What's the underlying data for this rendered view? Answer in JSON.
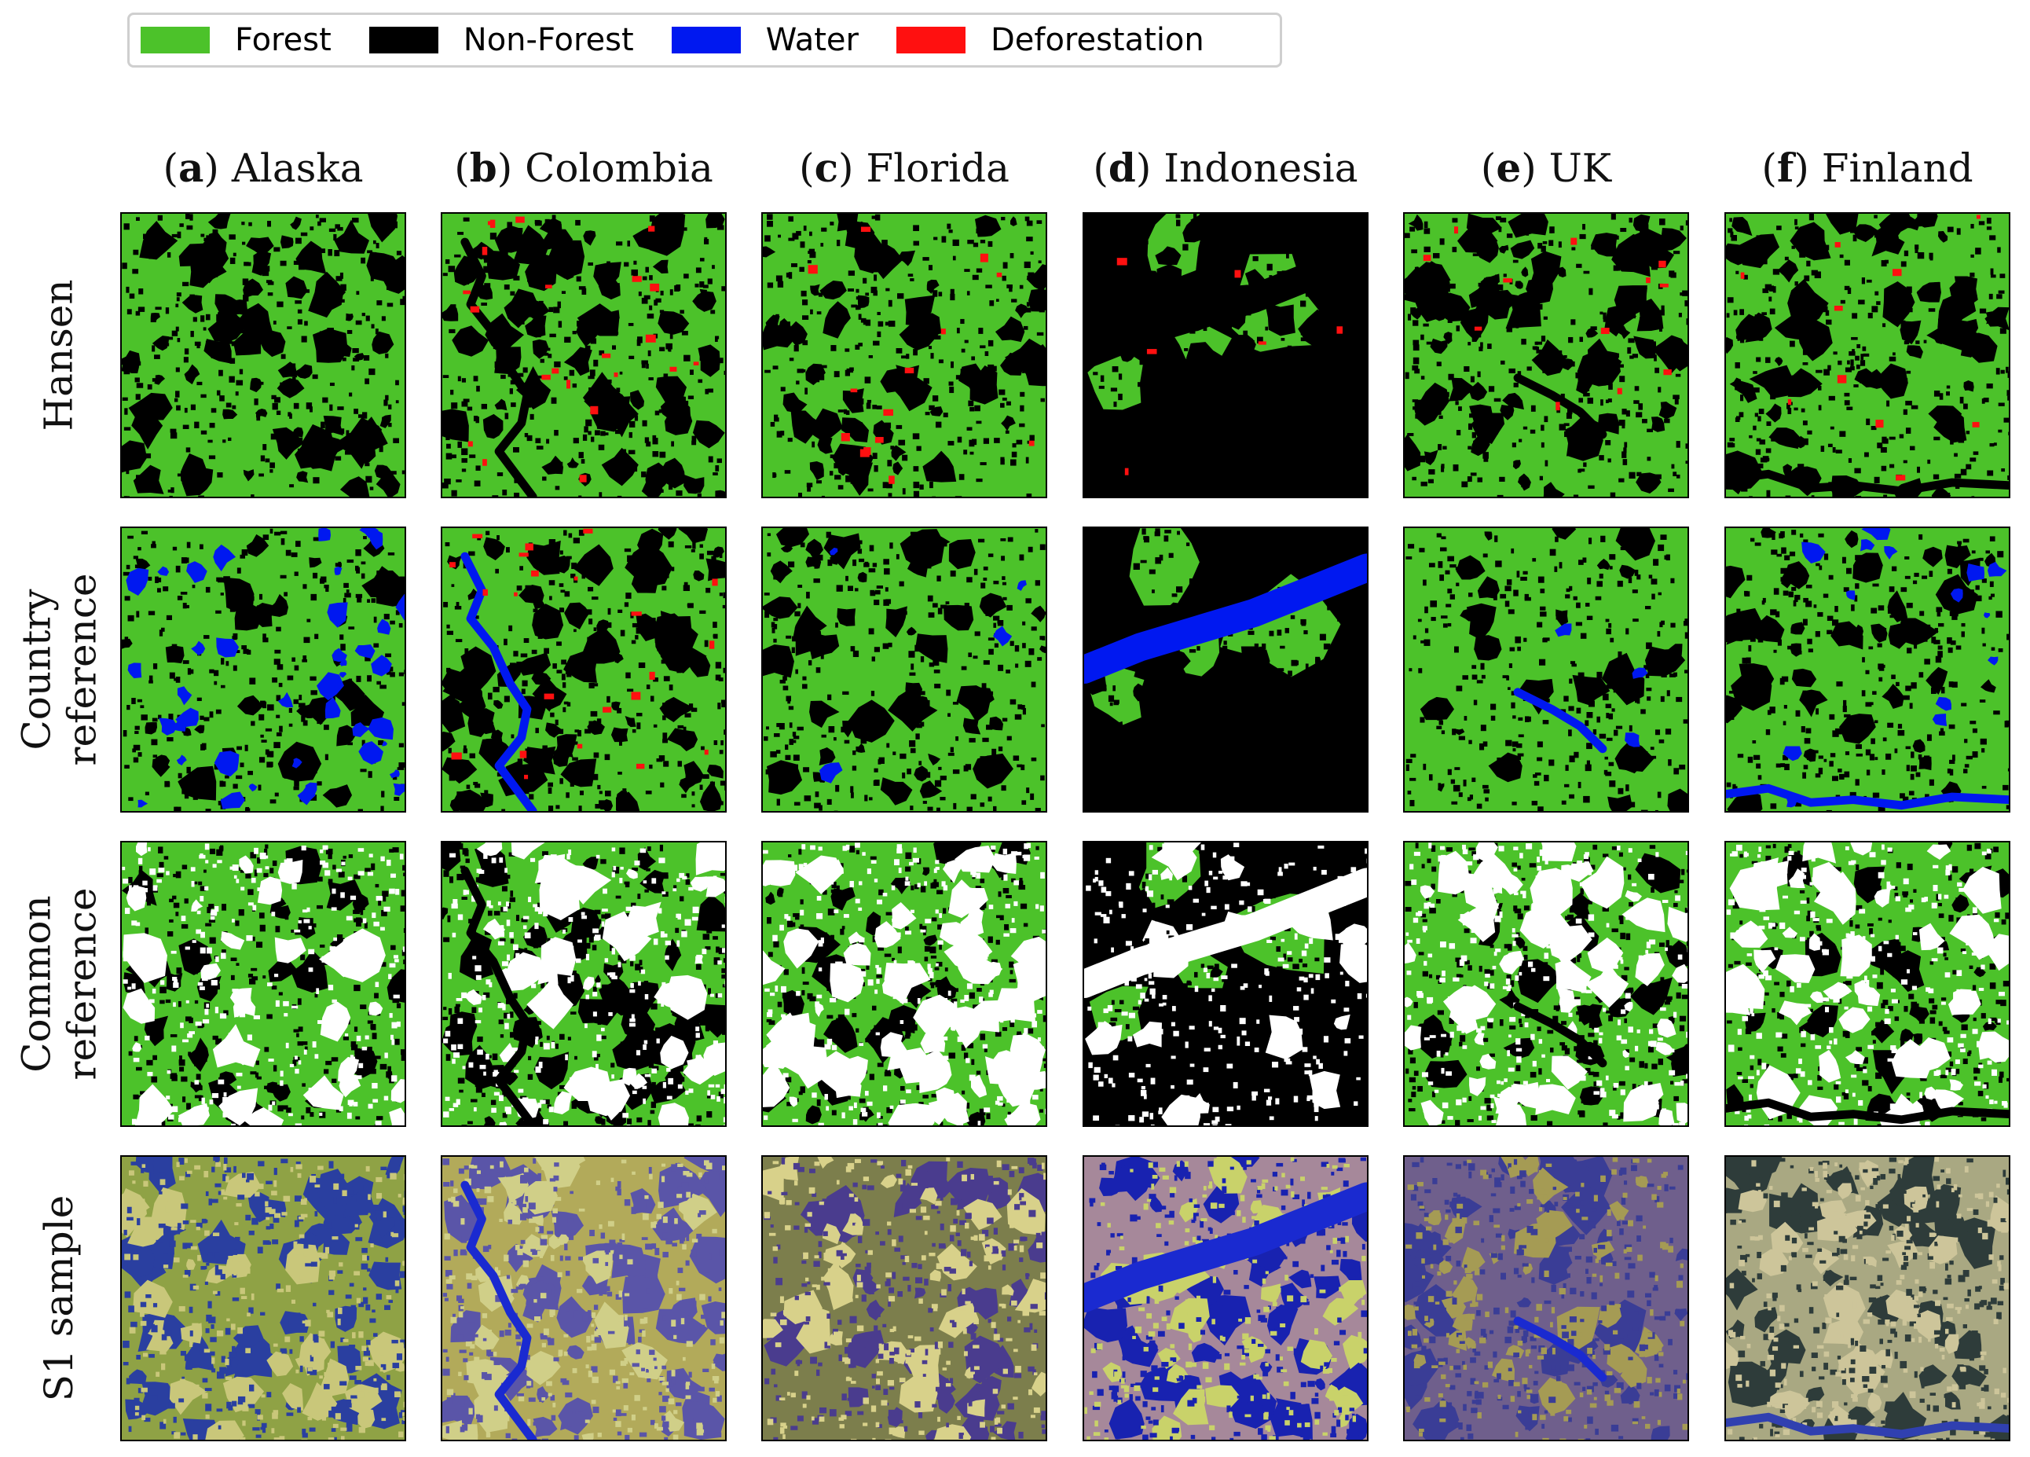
{
  "legend": [
    {
      "label": "Forest",
      "color": "#4cc22a"
    },
    {
      "label": "Non-Forest",
      "color": "#000000"
    },
    {
      "label": "Water",
      "color": "#0018f0"
    },
    {
      "label": "Deforestation",
      "color": "#ff1010"
    }
  ],
  "columns": [
    {
      "letter": "a",
      "name": "Alaska"
    },
    {
      "letter": "b",
      "name": "Colombia"
    },
    {
      "letter": "c",
      "name": "Florida"
    },
    {
      "letter": "d",
      "name": "Indonesia"
    },
    {
      "letter": "e",
      "name": "UK"
    },
    {
      "letter": "f",
      "name": "Finland"
    }
  ],
  "rows": [
    {
      "lines": [
        "Hansen"
      ],
      "key": "hansen"
    },
    {
      "lines": [
        "Country",
        "reference"
      ],
      "key": "country"
    },
    {
      "lines": [
        "Common",
        "reference"
      ],
      "key": "common"
    },
    {
      "lines": [
        "S1 sample"
      ],
      "key": "s1"
    }
  ],
  "colors": {
    "forest": "#4cc22a",
    "non_forest": "#000000",
    "water": "#0018f0",
    "deforestation": "#ff1010",
    "uncertain": "#ffffff"
  }
}
